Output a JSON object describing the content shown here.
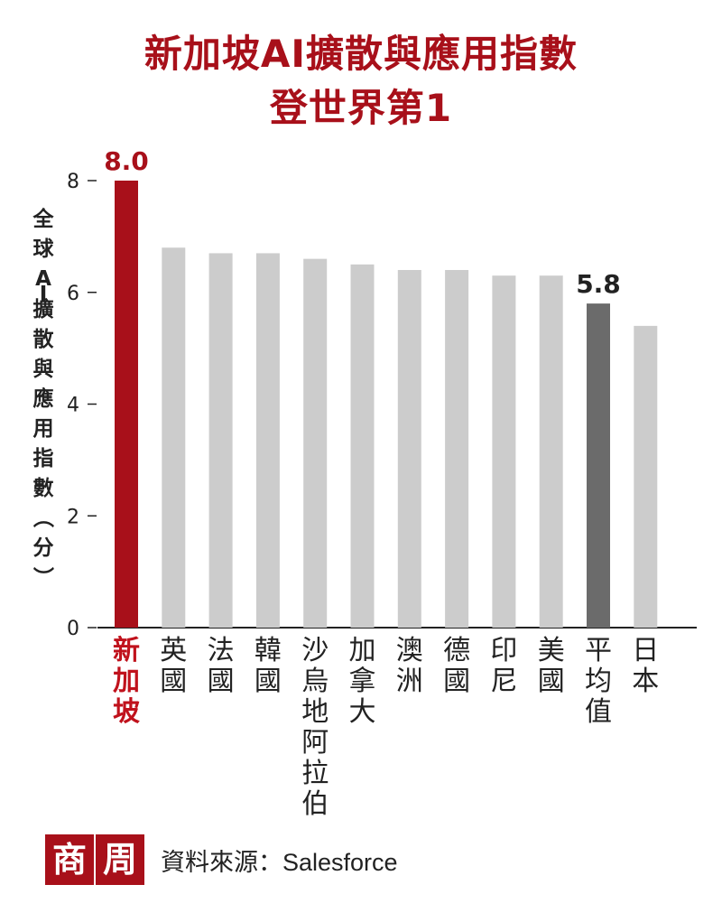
{
  "title_lines": [
    "新加坡AI擴散與應用指數",
    "登世界第1"
  ],
  "chart_data": {
    "type": "bar",
    "categories": [
      "新加坡",
      "英國",
      "法國",
      "韓國",
      "沙烏地阿拉伯",
      "加拿大",
      "澳洲",
      "德國",
      "印尼",
      "美國",
      "平均值",
      "日本"
    ],
    "values": [
      8.0,
      6.8,
      6.7,
      6.7,
      6.6,
      6.5,
      6.4,
      6.4,
      6.3,
      6.3,
      5.8,
      5.4
    ],
    "data_labels": [
      {
        "category": "新加坡",
        "text": "8.0"
      },
      {
        "category": "平均值",
        "text": "5.8"
      }
    ],
    "ylabel": "全球AI擴散與應用指數（分）",
    "yticks": [
      0,
      2,
      4,
      6,
      8
    ],
    "ylim": [
      0,
      8
    ],
    "colors": {
      "highlight": "#a8101a",
      "average": "#6b6b6b",
      "default": "#cccccc"
    },
    "grid": false,
    "legend": "none"
  },
  "source": {
    "badge": [
      "商",
      "周"
    ],
    "text": "資料來源：Salesforce"
  }
}
